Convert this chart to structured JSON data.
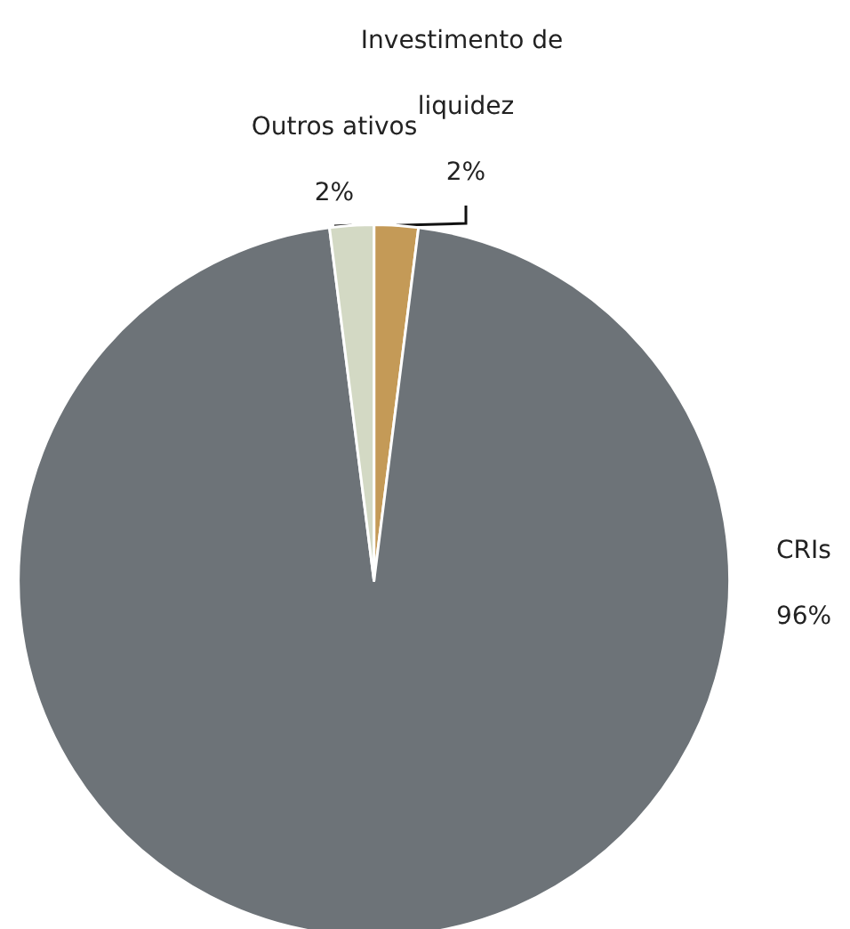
{
  "chart_data": {
    "type": "pie",
    "categories": [
      "Investimento de liquidez",
      "CRIs",
      "Outros ativos"
    ],
    "values": [
      2,
      96,
      2
    ],
    "colors": [
      "#c49a57",
      "#6d7378",
      "#d3d9c4"
    ],
    "value_labels": [
      "2%",
      "96%",
      "2%"
    ]
  }
}
